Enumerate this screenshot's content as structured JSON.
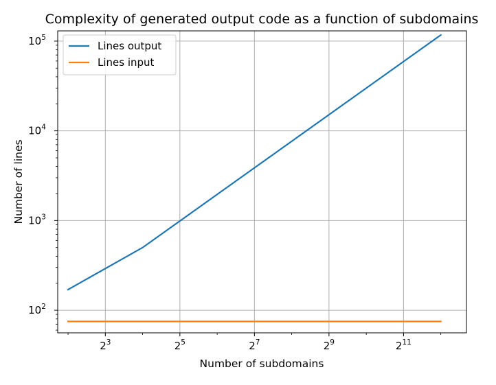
{
  "chart_data": {
    "type": "line",
    "title": "Complexity of generated output code as a function of subdomains",
    "xlabel": "Number of subdomains",
    "ylabel": "Number of lines",
    "xscale": "log2",
    "yscale": "log10",
    "xlim": [
      3.3,
      6600
    ],
    "ylim": [
      56,
      130000
    ],
    "x_ticks": [
      {
        "base": "2",
        "exp": "3",
        "value": 8
      },
      {
        "base": "2",
        "exp": "5",
        "value": 32
      },
      {
        "base": "2",
        "exp": "7",
        "value": 128
      },
      {
        "base": "2",
        "exp": "9",
        "value": 512
      },
      {
        "base": "2",
        "exp": "11",
        "value": 2048
      }
    ],
    "y_ticks": [
      {
        "base": "10",
        "exp": "2",
        "value": 100
      },
      {
        "base": "10",
        "exp": "3",
        "value": 1000
      },
      {
        "base": "10",
        "exp": "4",
        "value": 10000
      },
      {
        "base": "10",
        "exp": "5",
        "value": 100000
      }
    ],
    "grid": true,
    "legend_position": "top-left",
    "x": [
      4,
      16,
      4096
    ],
    "series": [
      {
        "name": "Lines output",
        "color": "#1f77b4",
        "x": [
          4,
          16,
          4096
        ],
        "values": [
          170,
          500,
          117000
        ]
      },
      {
        "name": "Lines input",
        "color": "#ff7f0e",
        "x": [
          4,
          16,
          4096
        ],
        "values": [
          75,
          75,
          75
        ]
      }
    ]
  }
}
